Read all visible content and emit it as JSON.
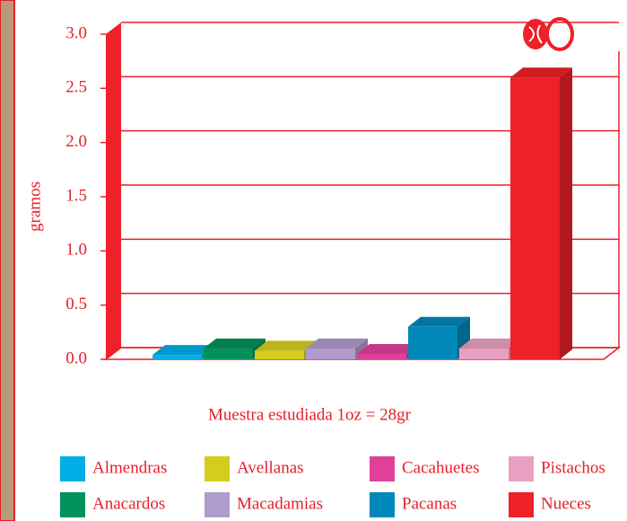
{
  "chart_data": {
    "type": "bar3d",
    "y_label": "gramos",
    "annotation": "Muestra estudiada 1oz = 28gr",
    "categories": [
      "Almendras",
      "Anacardos",
      "Avellanas",
      "Macadamias",
      "Cacahuetes",
      "Pacanas",
      "Pistachos",
      "Nueces"
    ],
    "values": [
      0.04,
      0.1,
      0.08,
      0.1,
      0.05,
      0.3,
      0.1,
      2.6
    ],
    "colors": [
      "#00aee8",
      "#00925a",
      "#d4cc1f",
      "#b09ccc",
      "#e0409a",
      "#0088b8",
      "#e8a0c0",
      "#ee2028"
    ],
    "ylim": [
      0,
      3
    ],
    "yticks": [
      {
        "value": 0,
        "label": "0.0"
      },
      0.5,
      {
        "value": 1,
        "label": "1.0"
      },
      1.5,
      {
        "value": 2,
        "label": "2.0"
      },
      2.5,
      {
        "value": 3,
        "label": "3.0"
      }
    ],
    "grid": true
  }
}
